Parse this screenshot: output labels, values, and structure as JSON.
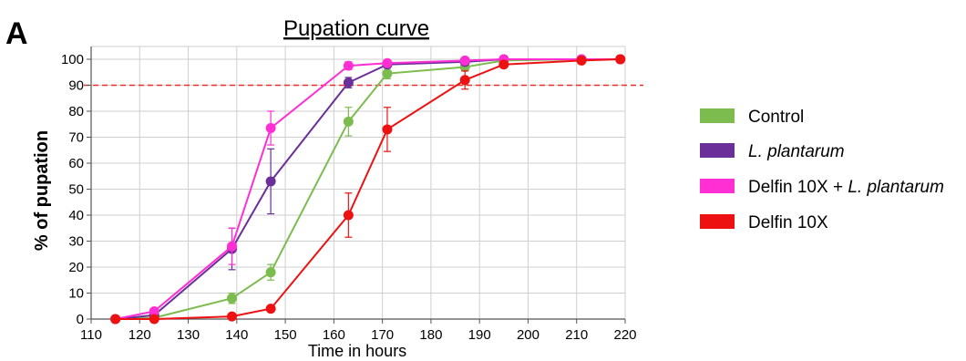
{
  "panel_letter": "A",
  "chart_data": {
    "type": "line",
    "title": "Pupation curve",
    "xlabel": "Time in hours",
    "ylabel": "% of pupation",
    "xlim": [
      110,
      220
    ],
    "ylim": [
      0,
      105
    ],
    "xticks": [
      110,
      120,
      130,
      140,
      150,
      160,
      170,
      180,
      190,
      200,
      210,
      220
    ],
    "yticks": [
      0,
      10,
      20,
      30,
      40,
      50,
      60,
      70,
      80,
      90,
      100
    ],
    "grid": true,
    "threshold_line": {
      "y": 90,
      "color": "#e8302a",
      "style": "dashed"
    },
    "legend_position": "right",
    "series": [
      {
        "name": "Control",
        "legend_parts": [
          {
            "text": "Control",
            "italic": false
          }
        ],
        "color": "#7cbb4e",
        "x": [
          115,
          123,
          139,
          147,
          163,
          171,
          187,
          195,
          211,
          219
        ],
        "y": [
          0,
          0.5,
          8,
          18,
          76,
          94.5,
          97,
          99.5,
          100,
          100
        ],
        "err": [
          0,
          0.5,
          2,
          3,
          5.5,
          2,
          1.5,
          0.5,
          0,
          0
        ]
      },
      {
        "name": "L. plantarum",
        "legend_parts": [
          {
            "text": "L. plantarum",
            "italic": true
          }
        ],
        "color": "#6b2f9a",
        "x": [
          115,
          123,
          139,
          147,
          163,
          171,
          187,
          195,
          211,
          219
        ],
        "y": [
          0,
          1.5,
          27,
          53,
          91,
          98,
          99,
          100,
          100,
          100
        ],
        "err": [
          0,
          1,
          8,
          12.5,
          2,
          1,
          1,
          0.5,
          0,
          0
        ]
      },
      {
        "name": "Delfin 10X + L. plantarum",
        "legend_parts": [
          {
            "text": "Delfin 10X + ",
            "italic": false
          },
          {
            "text": "L. plantarum",
            "italic": true
          }
        ],
        "color": "#ff2fd3",
        "x": [
          115,
          123,
          139,
          147,
          163,
          171,
          187,
          195,
          211,
          219
        ],
        "y": [
          0,
          3,
          28,
          73.5,
          97.5,
          98.5,
          99.5,
          100,
          100,
          100
        ],
        "err": [
          0,
          1,
          7,
          6.5,
          1.5,
          1,
          0.5,
          0,
          0,
          0
        ]
      },
      {
        "name": "Delfin 10X",
        "legend_parts": [
          {
            "text": "Delfin 10X",
            "italic": false
          }
        ],
        "color": "#ee1111",
        "x": [
          115,
          123,
          139,
          147,
          163,
          171,
          187,
          195,
          211,
          219
        ],
        "y": [
          0,
          0,
          1,
          4,
          40,
          73,
          92,
          98,
          99.5,
          100
        ],
        "err": [
          0,
          0,
          0.5,
          1,
          8.5,
          8.5,
          3.5,
          1,
          0.5,
          0
        ]
      }
    ]
  }
}
